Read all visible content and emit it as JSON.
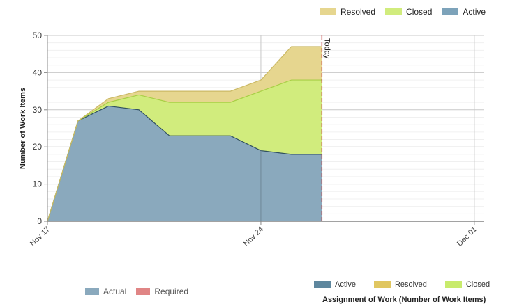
{
  "chart_data": {
    "type": "area",
    "stacked": true,
    "ylabel": "Number of Work Items",
    "ylim": [
      0,
      50
    ],
    "y_ticks": [
      "0",
      "10",
      "20",
      "30",
      "40",
      "50"
    ],
    "x_ticks": [
      "Nov 17",
      "Nov 24",
      "Dec 01"
    ],
    "x_range_days": [
      0,
      14.3
    ],
    "x_days": [
      0,
      1,
      2,
      3,
      4,
      5,
      6,
      7,
      8,
      9
    ],
    "series": [
      {
        "name": "Active",
        "values": [
          0,
          27,
          31,
          30,
          23,
          23,
          23,
          19,
          18,
          18
        ],
        "color": "#8aa9bd",
        "line_color": "#2f4f5f"
      },
      {
        "name": "Closed",
        "values": [
          0,
          0,
          1,
          4,
          9,
          9,
          9,
          16,
          20,
          20
        ],
        "color": "#d1ec7d",
        "line_color": "#a8cf45"
      },
      {
        "name": "Resolved",
        "values": [
          0,
          0,
          1,
          1,
          3,
          3,
          3,
          3,
          9,
          9
        ],
        "color": "#e6d68f",
        "line_color": "#cbb965"
      }
    ],
    "today_marker": {
      "label": "Today",
      "day": 9,
      "color": "#c23b3b"
    },
    "grid": true,
    "legend": "top-right"
  },
  "legend_top": [
    {
      "label": "Resolved",
      "color": "#e6d68f"
    },
    {
      "label": "Closed",
      "color": "#d1ec7d"
    },
    {
      "label": "Active",
      "color": "#7da3ba"
    }
  ],
  "legend_bottom_right": [
    {
      "label": "Active",
      "color": "#5e879e"
    },
    {
      "label": "Resolved",
      "color": "#e0c660"
    },
    {
      "label": "Closed",
      "color": "#c8eb6c"
    }
  ],
  "legend_bottom_left": [
    {
      "label": "Actual",
      "color": "#8aa9bd"
    },
    {
      "label": "Required",
      "color": "#e08585"
    }
  ],
  "bottom_title": "Assignment of Work (Number of Work Items)"
}
